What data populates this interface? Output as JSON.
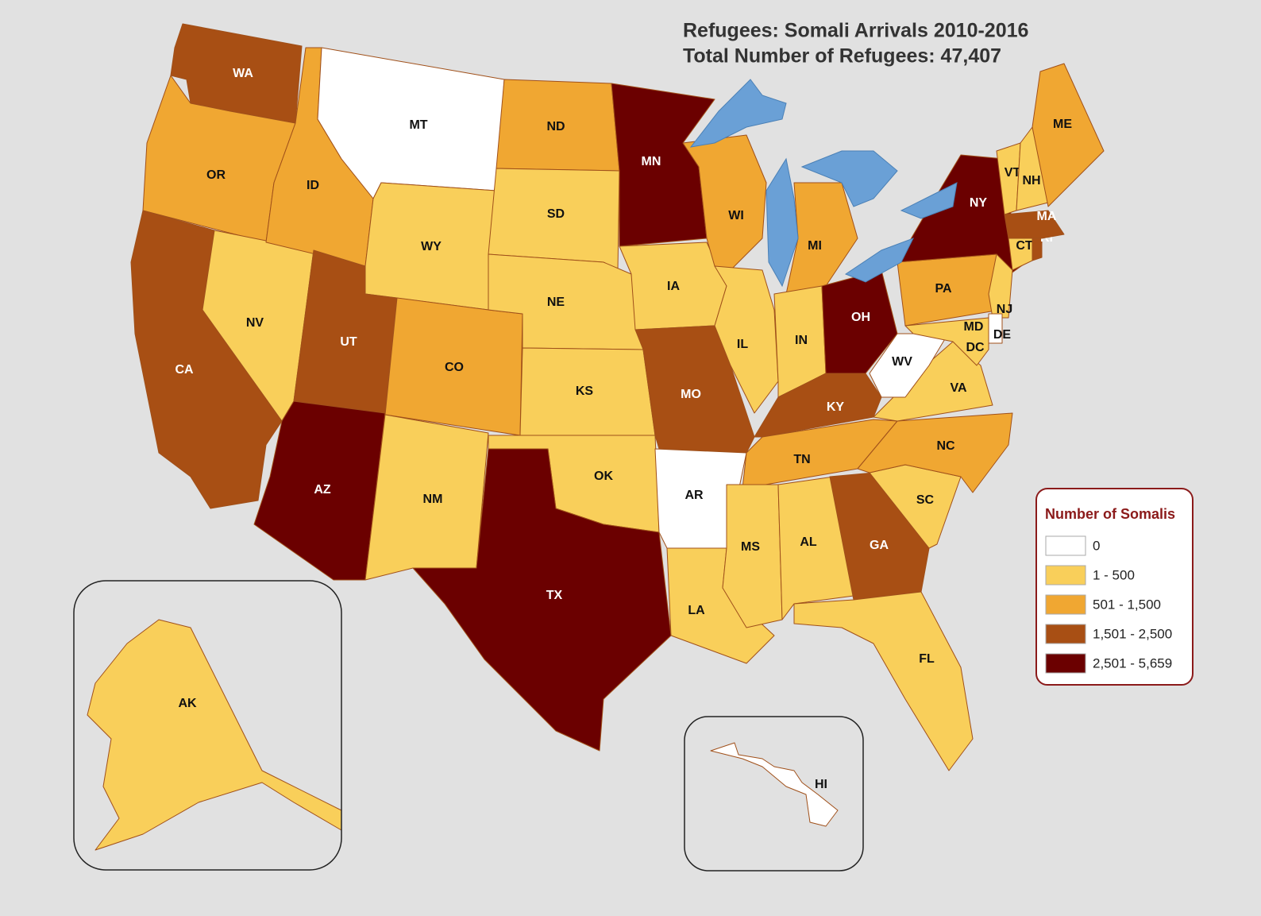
{
  "title": "Refugees:  Somali Arrivals 2010-2016",
  "subtitle": "Total Number of Refugees: 47,407",
  "legend": {
    "title": "Number of Somalis",
    "items": [
      {
        "label": "0",
        "color": "#ffffff"
      },
      {
        "label": "1 - 500",
        "color": "#f9cf5a"
      },
      {
        "label": "501 - 1,500",
        "color": "#f0a732"
      },
      {
        "label": "1,501 - 2,500",
        "color": "#a84f14"
      },
      {
        "label": "2,501 - 5,659",
        "color": "#6b0000"
      }
    ]
  },
  "states": [
    {
      "label": "WA",
      "color": "#a84f14"
    },
    {
      "label": "OR",
      "color": "#f0a732"
    },
    {
      "label": "CA",
      "color": "#a84f14"
    },
    {
      "label": "NV",
      "color": "#f9cf5a"
    },
    {
      "label": "ID",
      "color": "#f0a732"
    },
    {
      "label": "MT",
      "color": "#ffffff"
    },
    {
      "label": "WY",
      "color": "#f9cf5a"
    },
    {
      "label": "UT",
      "color": "#a84f14"
    },
    {
      "label": "AZ",
      "color": "#6b0000"
    },
    {
      "label": "CO",
      "color": "#f0a732"
    },
    {
      "label": "NM",
      "color": "#f9cf5a"
    },
    {
      "label": "ND",
      "color": "#f0a732"
    },
    {
      "label": "SD",
      "color": "#f9cf5a"
    },
    {
      "label": "NE",
      "color": "#f9cf5a"
    },
    {
      "label": "KS",
      "color": "#f9cf5a"
    },
    {
      "label": "OK",
      "color": "#f9cf5a"
    },
    {
      "label": "TX",
      "color": "#6b0000"
    },
    {
      "label": "MN",
      "color": "#6b0000"
    },
    {
      "label": "IA",
      "color": "#f9cf5a"
    },
    {
      "label": "MO",
      "color": "#a84f14"
    },
    {
      "label": "AR",
      "color": "#ffffff"
    },
    {
      "label": "LA",
      "color": "#f9cf5a"
    },
    {
      "label": "WI",
      "color": "#f0a732"
    },
    {
      "label": "IL",
      "color": "#f9cf5a"
    },
    {
      "label": "MI",
      "color": "#f0a732"
    },
    {
      "label": "IN",
      "color": "#f9cf5a"
    },
    {
      "label": "OH",
      "color": "#6b0000"
    },
    {
      "label": "KY",
      "color": "#a84f14"
    },
    {
      "label": "TN",
      "color": "#f0a732"
    },
    {
      "label": "MS",
      "color": "#f9cf5a"
    },
    {
      "label": "AL",
      "color": "#f9cf5a"
    },
    {
      "label": "GA",
      "color": "#a84f14"
    },
    {
      "label": "FL",
      "color": "#f9cf5a"
    },
    {
      "label": "SC",
      "color": "#f9cf5a"
    },
    {
      "label": "NC",
      "color": "#f0a732"
    },
    {
      "label": "VA",
      "color": "#f9cf5a"
    },
    {
      "label": "WV",
      "color": "#ffffff"
    },
    {
      "label": "PA",
      "color": "#f0a732"
    },
    {
      "label": "NY",
      "color": "#6b0000"
    },
    {
      "label": "NJ",
      "color": "#f9cf5a"
    },
    {
      "label": "MD",
      "color": "#f9cf5a"
    },
    {
      "label": "DE",
      "color": "#ffffff"
    },
    {
      "label": "CT",
      "color": "#f9cf5a"
    },
    {
      "label": "RI",
      "color": "#a84f14"
    },
    {
      "label": "MA",
      "color": "#a84f14"
    },
    {
      "label": "VT",
      "color": "#f9cf5a"
    },
    {
      "label": "NH",
      "color": "#f9cf5a"
    },
    {
      "label": "ME",
      "color": "#f0a732"
    },
    {
      "label": "DC",
      "color": "#f9cf5a"
    },
    {
      "label": "AK",
      "color": "#f9cf5a"
    },
    {
      "label": "HI",
      "color": "#ffffff"
    }
  ]
}
